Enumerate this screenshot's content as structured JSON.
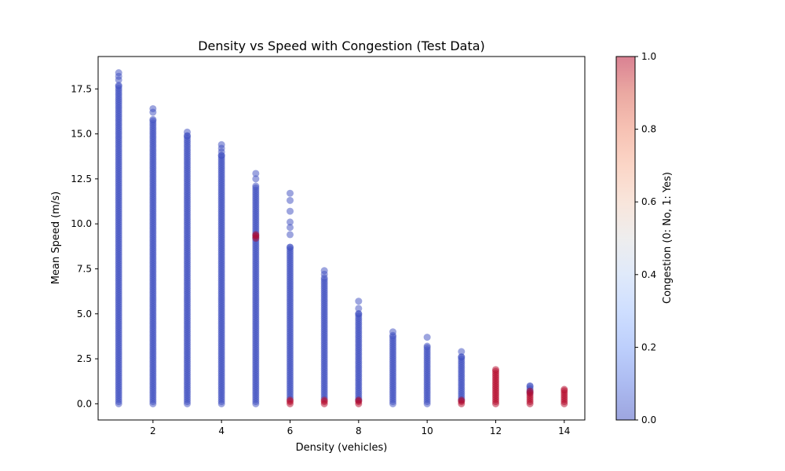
{
  "chart_data": {
    "type": "scatter",
    "title": "Density vs Speed with Congestion (Test Data)",
    "xlabel": "Density (vehicles)",
    "ylabel": "Mean Speed (m/s)",
    "xlim": [
      0.4,
      14.6
    ],
    "ylim": [
      -0.9,
      19.3
    ],
    "xticks": [
      2,
      4,
      6,
      8,
      10,
      12,
      14
    ],
    "yticks": [
      0.0,
      2.5,
      5.0,
      7.5,
      10.0,
      12.5,
      15.0,
      17.5
    ],
    "ytick_labels": [
      "0.0",
      "2.5",
      "5.0",
      "7.5",
      "10.0",
      "12.5",
      "15.0",
      "17.5"
    ],
    "grid": false,
    "colormap": "coolwarm",
    "point_alpha": 0.5,
    "colorbar": {
      "label": "Congestion (0: No, 1: Yes)",
      "range": [
        0.0,
        1.0
      ],
      "ticks": [
        0.0,
        0.2,
        0.4,
        0.6,
        0.8,
        1.0
      ],
      "tick_labels": [
        "0.0",
        "0.2",
        "0.4",
        "0.6",
        "0.8",
        "1.0"
      ]
    },
    "colors": {
      "no_congestion": "#3b4cc0",
      "congestion": "#b40426"
    },
    "columns": [
      {
        "density": 1,
        "no_congestion_range": [
          0,
          17.7
        ],
        "no_congestion_outliers": [
          18.0,
          18.2,
          18.4
        ],
        "congestion_range": null
      },
      {
        "density": 2,
        "no_congestion_range": [
          0,
          15.8
        ],
        "no_congestion_outliers": [
          16.2,
          16.4
        ],
        "congestion_range": null
      },
      {
        "density": 3,
        "no_congestion_range": [
          0,
          14.9
        ],
        "no_congestion_outliers": [
          15.1
        ],
        "congestion_range": null
      },
      {
        "density": 4,
        "no_congestion_range": [
          0,
          13.8
        ],
        "no_congestion_outliers": [
          14.0,
          14.2,
          14.4
        ],
        "congestion_range": null
      },
      {
        "density": 5,
        "no_congestion_range": [
          0,
          12.1
        ],
        "no_congestion_outliers": [
          12.5,
          12.8
        ],
        "congestion_range": [
          9.2,
          9.4
        ]
      },
      {
        "density": 6,
        "no_congestion_range": [
          0.3,
          8.7
        ],
        "no_congestion_outliers": [
          9.4,
          9.8,
          10.1,
          10.7,
          11.3,
          11.7
        ],
        "congestion_range": [
          0,
          0.2
        ]
      },
      {
        "density": 7,
        "no_congestion_range": [
          0.3,
          7.0
        ],
        "no_congestion_outliers": [
          7.2,
          7.4
        ],
        "congestion_range": [
          0,
          0.2
        ]
      },
      {
        "density": 8,
        "no_congestion_range": [
          0.2,
          5.0
        ],
        "no_congestion_outliers": [
          5.3,
          5.7
        ],
        "congestion_range": [
          0,
          0.2
        ]
      },
      {
        "density": 9,
        "no_congestion_range": [
          0,
          3.8
        ],
        "no_congestion_outliers": [
          4.0
        ],
        "congestion_range": null
      },
      {
        "density": 10,
        "no_congestion_range": [
          0,
          3.2
        ],
        "no_congestion_outliers": [
          3.7
        ],
        "congestion_range": null
      },
      {
        "density": 11,
        "no_congestion_range": [
          0.2,
          2.6
        ],
        "no_congestion_outliers": [
          2.9
        ],
        "congestion_range": [
          0,
          0.2
        ]
      },
      {
        "density": 12,
        "no_congestion_range": null,
        "no_congestion_outliers": [],
        "congestion_range": [
          0,
          1.9
        ]
      },
      {
        "density": 13,
        "no_congestion_range": [
          0.6,
          1.0
        ],
        "no_congestion_outliers": [],
        "congestion_range": [
          0,
          0.7
        ]
      },
      {
        "density": 14,
        "no_congestion_range": null,
        "no_congestion_outliers": [],
        "congestion_range": [
          0,
          0.8
        ]
      }
    ]
  }
}
